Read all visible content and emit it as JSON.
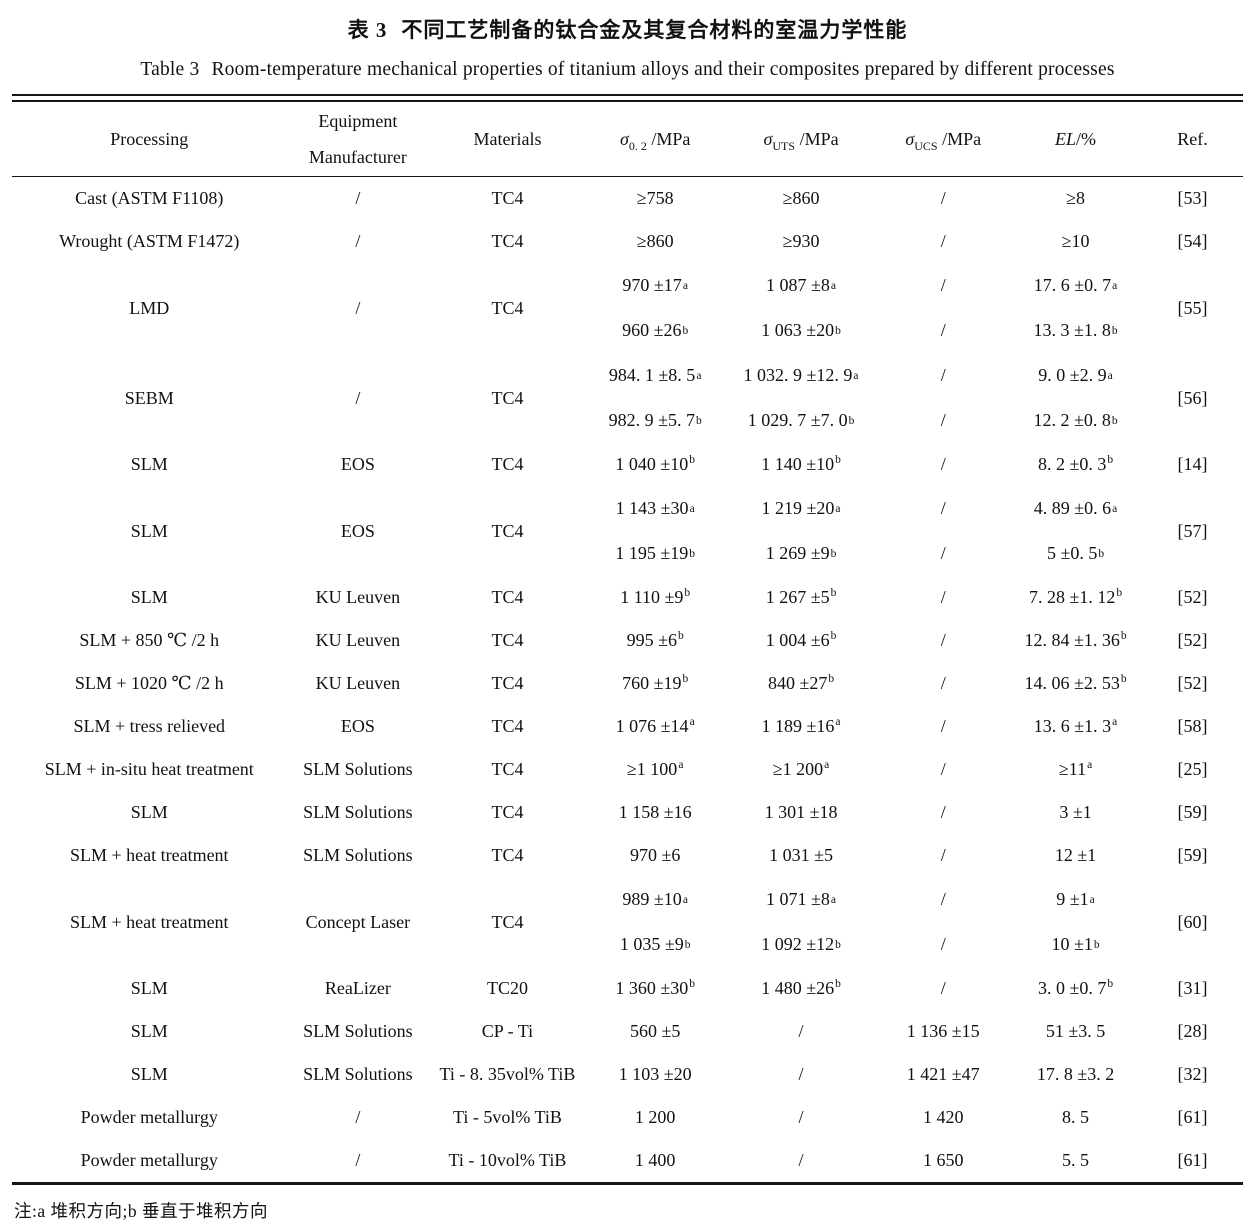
{
  "page": {
    "title_cn": {
      "label": "表 3",
      "text": "不同工艺制备的钛合金及其复合材料的室温力学性能"
    },
    "title_en": {
      "label": "Table 3",
      "text": "Room-temperature mechanical properties of titanium alloys and their composites prepared by different processes"
    },
    "footnote": "注:a 堆积方向;b 垂直于堆积方向"
  },
  "table": {
    "columns": [
      {
        "id": "processing",
        "lines": [
          "Processing"
        ]
      },
      {
        "id": "equipment",
        "lines": [
          "Equipment",
          "Manufacturer"
        ]
      },
      {
        "id": "materials",
        "lines": [
          "Materials"
        ]
      },
      {
        "id": "sigma02",
        "italic": "σ",
        "sub": "0. 2",
        "rest": " /MPa"
      },
      {
        "id": "uts",
        "italic": "σ",
        "sub": "UTS",
        "rest": " /MPa"
      },
      {
        "id": "ucs",
        "italic": "σ",
        "sub": "UCS",
        "rest": " /MPa"
      },
      {
        "id": "el",
        "italic": "EL",
        "rest": "/%"
      },
      {
        "id": "ref",
        "lines": [
          "Ref."
        ]
      }
    ],
    "rows": [
      {
        "processing": "Cast (ASTM F1108)",
        "equipment": "/",
        "materials": "TC4",
        "sigma02": "≥758",
        "uts": "≥860",
        "ucs": "/",
        "el": "≥8",
        "ref": "[53]"
      },
      {
        "processing": "Wrought (ASTM F1472)",
        "equipment": "/",
        "materials": "TC4",
        "sigma02": "≥860",
        "uts": "≥930",
        "ucs": "/",
        "el": "≥10",
        "ref": "[54]"
      },
      {
        "processing": "LMD",
        "equipment": "/",
        "materials": "TC4",
        "sigma02": [
          "970 ±17^a",
          "960 ±26^b"
        ],
        "uts": [
          "1 087 ±8^a",
          "1 063 ±20^b"
        ],
        "ucs": [
          "/",
          "/"
        ],
        "el": [
          "17. 6 ±0. 7^a",
          "13. 3 ±1. 8^b"
        ],
        "ref": "[55]"
      },
      {
        "processing": "SEBM",
        "equipment": "/",
        "materials": "TC4",
        "sigma02": [
          "984. 1 ±8. 5^a",
          "982. 9 ±5. 7^b"
        ],
        "uts": [
          "1 032. 9 ±12. 9^a",
          "1 029. 7 ±7. 0^b"
        ],
        "ucs": [
          "/",
          "/"
        ],
        "el": [
          "9. 0 ±2. 9^a",
          "12. 2 ±0. 8^b"
        ],
        "ref": "[56]"
      },
      {
        "processing": "SLM",
        "equipment": "EOS",
        "materials": "TC4",
        "sigma02": "1 040 ±10^b",
        "uts": "1 140 ±10^b",
        "ucs": "/",
        "el": "8. 2 ±0. 3^b",
        "ref": "[14]"
      },
      {
        "processing": "SLM",
        "equipment": "EOS",
        "materials": "TC4",
        "sigma02": [
          "1 143 ±30^a",
          "1 195 ±19^b"
        ],
        "uts": [
          "1 219 ±20^a",
          "1 269 ±9^b"
        ],
        "ucs": [
          "/",
          "/"
        ],
        "el": [
          "4. 89 ±0. 6^a",
          "5 ±0. 5^b"
        ],
        "ref": "[57]"
      },
      {
        "processing": "SLM",
        "equipment": "KU Leuven",
        "materials": "TC4",
        "sigma02": "1 110 ±9^b",
        "uts": "1 267 ±5^b",
        "ucs": "/",
        "el": "7. 28 ±1. 12^b",
        "ref": "[52]"
      },
      {
        "processing": "SLM + 850 ℃ /2 h",
        "equipment": "KU Leuven",
        "materials": "TC4",
        "sigma02": "995 ±6^b",
        "uts": "1 004 ±6^b",
        "ucs": "/",
        "el": "12. 84 ±1. 36^b",
        "ref": "[52]"
      },
      {
        "processing": "SLM + 1020 ℃ /2 h",
        "equipment": "KU Leuven",
        "materials": "TC4",
        "sigma02": "760 ±19^b",
        "uts": "840 ±27^b",
        "ucs": "/",
        "el": "14. 06 ±2. 53^b",
        "ref": "[52]"
      },
      {
        "processing": "SLM + tress relieved",
        "equipment": "EOS",
        "materials": "TC4",
        "sigma02": "1 076 ±14^a",
        "uts": "1 189 ±16^a",
        "ucs": "/",
        "el": "13. 6 ±1. 3^a",
        "ref": "[58]"
      },
      {
        "processing": "SLM + in-situ heat treatment",
        "equipment": "SLM Solutions",
        "materials": "TC4",
        "sigma02": "≥1 100^a",
        "uts": "≥1 200^a",
        "ucs": "/",
        "el": "≥11^a",
        "ref": "[25]"
      },
      {
        "processing": "SLM",
        "equipment": "SLM Solutions",
        "materials": "TC4",
        "sigma02": "1 158 ±16",
        "uts": "1 301 ±18",
        "ucs": "/",
        "el": "3 ±1",
        "ref": "[59]"
      },
      {
        "processing": "SLM +  heat treatment",
        "equipment": "SLM Solutions",
        "materials": "TC4",
        "sigma02": "970 ±6",
        "uts": "1 031 ±5",
        "ucs": "/",
        "el": "12 ±1",
        "ref": "[59]"
      },
      {
        "processing": "SLM + heat treatment",
        "equipment": "Concept Laser",
        "materials": "TC4",
        "sigma02": [
          "989 ±10^a",
          "1 035 ±9^b"
        ],
        "uts": [
          "1 071 ±8^a",
          "1 092 ±12^b"
        ],
        "ucs": [
          "/",
          "/"
        ],
        "el": [
          "9 ±1^a",
          "10 ±1^b"
        ],
        "ref": "[60]"
      },
      {
        "processing": "SLM",
        "equipment": "ReaLizer",
        "materials": "TC20",
        "sigma02": "1 360 ±30^b",
        "uts": "1 480 ±26^b",
        "ucs": "/",
        "el": "3. 0 ±0. 7^b",
        "ref": "[31]"
      },
      {
        "processing": "SLM",
        "equipment": "SLM Solutions",
        "materials": "CP - Ti",
        "sigma02": "560 ±5",
        "uts": "/",
        "ucs": "1 136 ±15",
        "el": "51 ±3. 5",
        "ref": "[28]"
      },
      {
        "processing": "SLM",
        "equipment": "SLM Solutions",
        "materials": "Ti - 8. 35vol%  TiB",
        "sigma02": "1 103 ±20",
        "uts": "/",
        "ucs": "1 421 ±47",
        "el": "17. 8 ±3. 2",
        "ref": "[32]"
      },
      {
        "processing": "Powder metallurgy",
        "equipment": "/",
        "materials": "Ti - 5vol%  TiB",
        "sigma02": "1 200",
        "uts": "/",
        "ucs": "1 420",
        "el": "8. 5",
        "ref": "[61]"
      },
      {
        "processing": "Powder metallurgy",
        "equipment": "/",
        "materials": "Ti - 10vol%  TiB",
        "sigma02": "1 400",
        "uts": "/",
        "ucs": "1 650",
        "el": "5. 5",
        "ref": "[61]"
      }
    ]
  }
}
